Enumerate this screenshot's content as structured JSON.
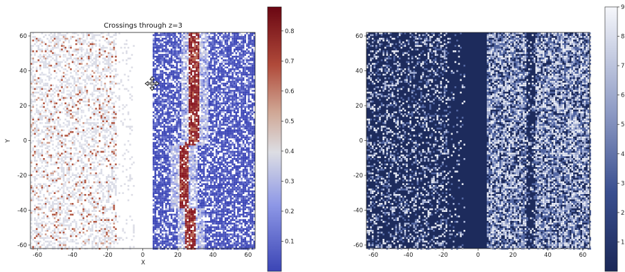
{
  "chart_data": [
    {
      "type": "heatmap",
      "title": "Crossings through z=3",
      "xlabel": "X",
      "ylabel": "Y",
      "xlim": [
        -64,
        64
      ],
      "ylim": [
        -62,
        62
      ],
      "x_ticks": [
        -60,
        -40,
        -20,
        0,
        20,
        40,
        60
      ],
      "y_ticks": [
        -60,
        -40,
        -20,
        0,
        20,
        40,
        60
      ],
      "colormap": "coolwarm-diverging (blue → white → dark red)",
      "colorbar": {
        "min": 0.0,
        "max": 0.88,
        "ticks": [
          "0.1",
          "0.2",
          "0.3",
          "0.4",
          "0.5",
          "0.6",
          "0.7",
          "0.8"
        ]
      },
      "colors": {
        "low": "#3c46b4",
        "mid": "#dcdcdc",
        "high": "#7a0a14"
      },
      "cursor_icon": "move-cursor-icon"
    },
    {
      "type": "heatmap",
      "title": "",
      "xlabel": "",
      "ylabel": "",
      "xlim": [
        -64,
        64
      ],
      "ylim": [
        -62,
        62
      ],
      "x_ticks": [
        -60,
        -40,
        -20,
        0,
        20,
        40,
        60
      ],
      "y_ticks": [
        -60,
        -40,
        -20,
        0,
        20,
        40,
        60
      ],
      "colormap": "navy → white sequential",
      "colorbar": {
        "min": 0,
        "max": 9,
        "ticks": [
          "1",
          "2",
          "3",
          "4",
          "5",
          "6",
          "7",
          "8",
          "9"
        ]
      },
      "colors": {
        "low": "#1c2a5a",
        "high": "#f4f6fa"
      }
    }
  ]
}
